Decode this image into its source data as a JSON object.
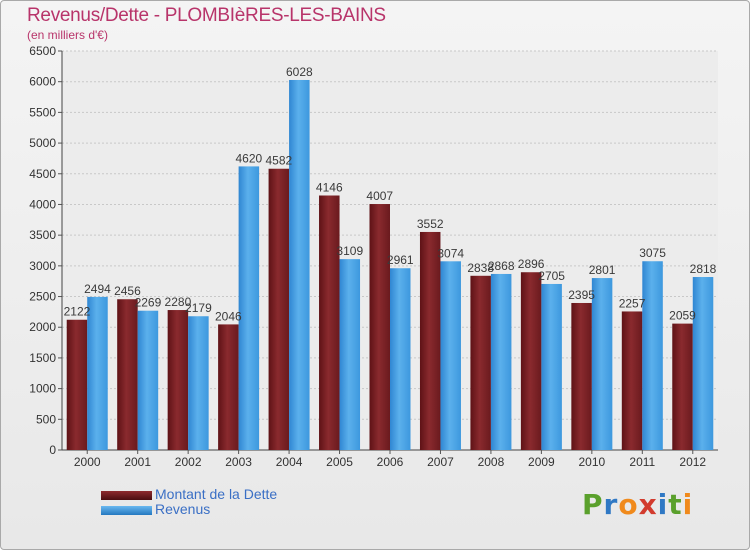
{
  "header": {
    "title": "Revenus/Dette - PLOMBIèRES-LES-BAINS",
    "subtitle": "(en milliers d'€)"
  },
  "logo": {
    "letters": [
      "P",
      "r",
      "o",
      "x",
      "i",
      "t",
      "i"
    ],
    "colors": [
      "#5aa02c",
      "#2f78c4",
      "#f08a1c",
      "#d23b2e",
      "#2f78c4",
      "#5aa02c",
      "#f08a1c"
    ]
  },
  "colors": {
    "dette": "#7a1e22",
    "revenus": "#3b9ae2",
    "label_text": "#3a3a3a"
  },
  "chart_data": {
    "type": "bar",
    "title": "Revenus/Dette - PLOMBIèRES-LES-BAINS",
    "ylabel": "(en milliers d'€)",
    "xlabel": "",
    "categories": [
      "2000",
      "2001",
      "2002",
      "2003",
      "2004",
      "2005",
      "2006",
      "2007",
      "2008",
      "2009",
      "2010",
      "2011",
      "2012"
    ],
    "series": [
      {
        "name": "Montant de la Dette",
        "values": [
          2122,
          2456,
          2280,
          2046,
          4582,
          4146,
          4007,
          3552,
          2838,
          2896,
          2395,
          2257,
          2059
        ]
      },
      {
        "name": "Revenus",
        "values": [
          2494,
          2269,
          2179,
          4620,
          6028,
          3109,
          2961,
          3074,
          2868,
          2705,
          2801,
          3075,
          2818
        ]
      }
    ],
    "ylim": [
      0,
      6500
    ],
    "yticks": [
      0,
      500,
      1000,
      1500,
      2000,
      2500,
      3000,
      3500,
      4000,
      4500,
      5000,
      5500,
      6000,
      6500
    ],
    "grid": true,
    "legend": "bottom-left"
  }
}
